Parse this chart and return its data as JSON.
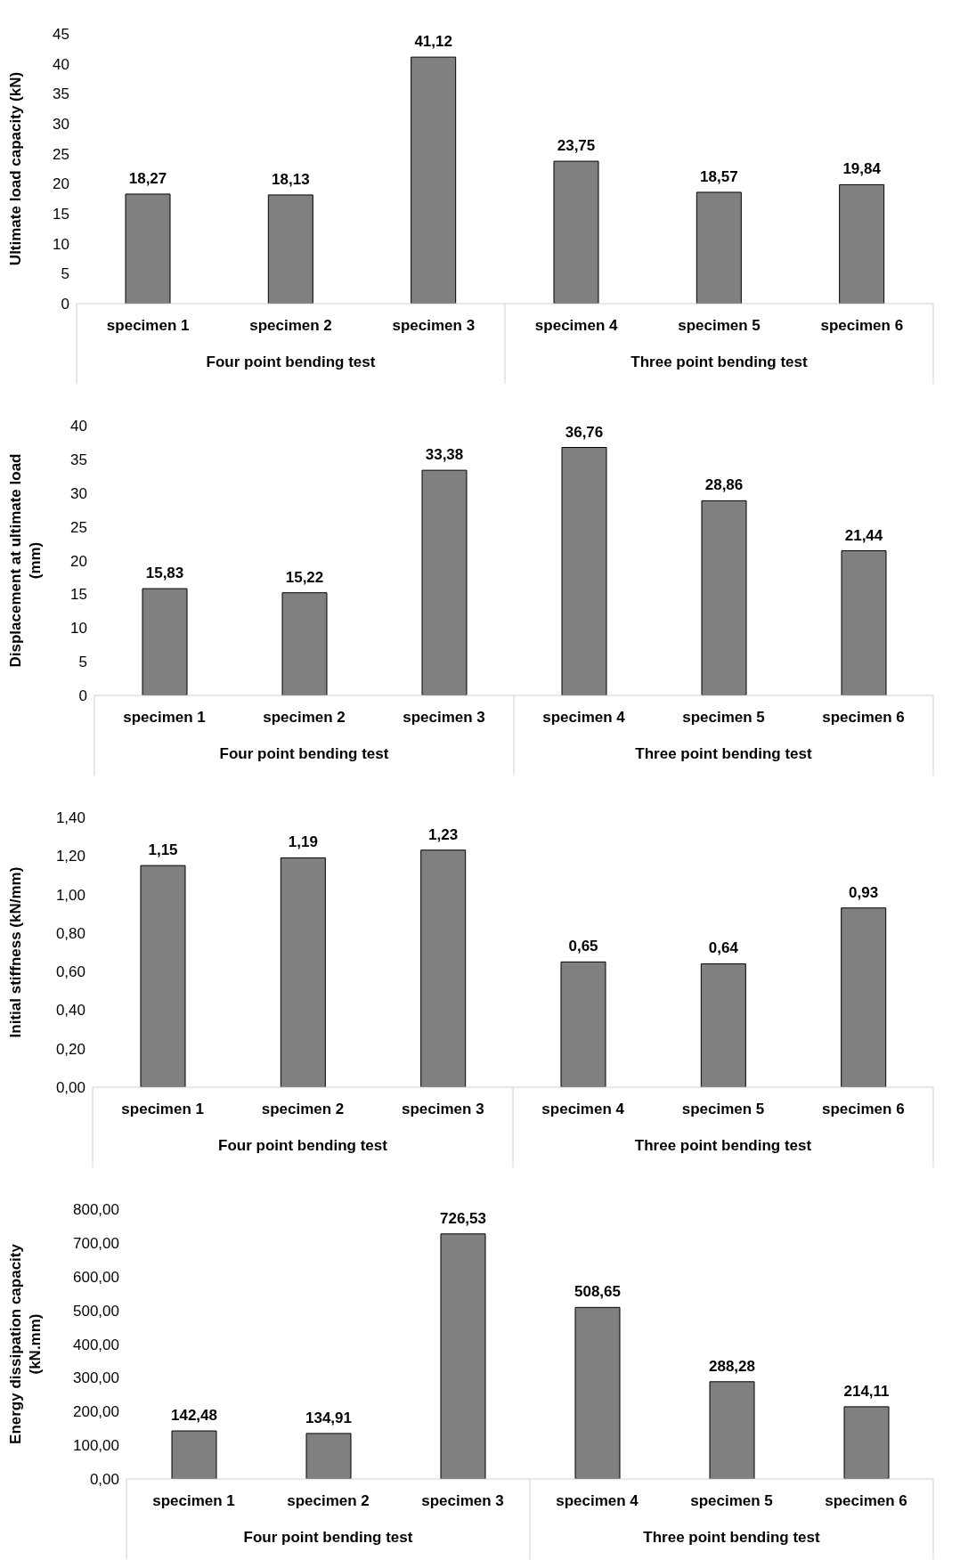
{
  "chart_data": [
    {
      "type": "bar",
      "ylabel": "Ultimate load capacity (kN)",
      "categories": [
        "specimen 1",
        "specimen 2",
        "specimen 3",
        "specimen 4",
        "specimen 5",
        "specimen 6"
      ],
      "values": [
        18.27,
        18.13,
        41.12,
        23.75,
        18.57,
        19.84
      ],
      "value_labels": [
        "18,27",
        "18,13",
        "41,12",
        "23,75",
        "18,57",
        "19,84"
      ],
      "color": "#808080",
      "ylim": [
        0,
        45
      ],
      "yticks": [
        0,
        5,
        10,
        15,
        20,
        25,
        30,
        35,
        40,
        45
      ],
      "grid": false,
      "legend": false,
      "annotations": [
        "Four point bending test",
        "Three point bending test"
      ]
    },
    {
      "type": "bar",
      "ylabel": "Displacement at ultimate load (mm)",
      "categories": [
        "specimen 1",
        "specimen 2",
        "specimen 3",
        "specimen 4",
        "specimen 5",
        "specimen 6"
      ],
      "values": [
        15.83,
        15.22,
        33.38,
        36.76,
        28.86,
        21.44
      ],
      "value_labels": [
        "15,83",
        "15,22",
        "33,38",
        "36,76",
        "28,86",
        "21,44"
      ],
      "color": "#808080",
      "ylim": [
        0,
        40
      ],
      "yticks": [
        0,
        5,
        10,
        15,
        20,
        25,
        30,
        35,
        40
      ],
      "grid": false,
      "legend": false,
      "annotations": [
        "Four point bending test",
        "Three point bending test"
      ]
    },
    {
      "type": "bar",
      "ylabel": "Initial stiffness (kN/mm)",
      "categories": [
        "specimen 1",
        "specimen 2",
        "specimen 3",
        "specimen 4",
        "specimen 5",
        "specimen 6"
      ],
      "values": [
        1.15,
        1.19,
        1.23,
        0.65,
        0.64,
        0.93
      ],
      "value_labels": [
        "1,15",
        "1,19",
        "1,23",
        "0,65",
        "0,64",
        "0,93"
      ],
      "color": "#808080",
      "ylim": [
        0,
        1.4
      ],
      "yticks": [
        {
          "value": 0,
          "label": "0,00"
        },
        {
          "value": 0.2,
          "label": "0,20"
        },
        {
          "value": 0.4,
          "label": "0,40"
        },
        {
          "value": 0.6,
          "label": "0,60"
        },
        {
          "value": 0.8,
          "label": "0,80"
        },
        {
          "value": 1,
          "label": "1,00"
        },
        {
          "value": 1.2,
          "label": "1,20"
        },
        {
          "value": 1.4,
          "label": "1,40"
        }
      ],
      "grid": false,
      "legend": false,
      "annotations": [
        "Four point bending test",
        "Three point bending test"
      ]
    },
    {
      "type": "bar",
      "ylabel": "Energy dissipation capacity (kN.mm)",
      "categories": [
        "specimen 1",
        "specimen 2",
        "specimen 3",
        "specimen 4",
        "specimen 5",
        "specimen 6"
      ],
      "values": [
        142.48,
        134.91,
        726.53,
        508.65,
        288.28,
        214.11
      ],
      "value_labels": [
        "142,48",
        "134,91",
        "726,53",
        "508,65",
        "288,28",
        "214,11"
      ],
      "color": "#808080",
      "ylim": [
        0,
        800
      ],
      "yticks": [
        {
          "value": 0,
          "label": "0,00"
        },
        {
          "value": 100,
          "label": "100,00"
        },
        {
          "value": 200,
          "label": "200,00"
        },
        {
          "value": 300,
          "label": "300,00"
        },
        {
          "value": 400,
          "label": "400,00"
        },
        {
          "value": 500,
          "label": "500,00"
        },
        {
          "value": 600,
          "label": "600,00"
        },
        {
          "value": 700,
          "label": "700,00"
        },
        {
          "value": 800,
          "label": "800,00"
        }
      ],
      "grid": false,
      "legend": false,
      "annotations": [
        "Four point bending test",
        "Three point bending test"
      ]
    }
  ]
}
